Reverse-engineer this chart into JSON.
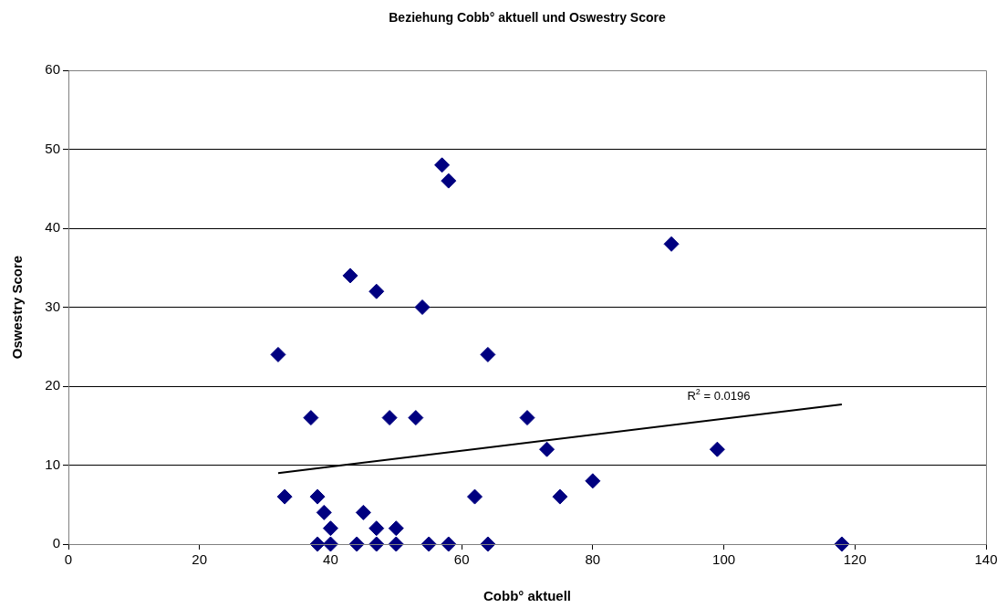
{
  "chart_data": {
    "type": "scatter",
    "title": "Beziehung Cobb° aktuell und Oswestry Score",
    "xlabel": "Cobb° aktuell",
    "ylabel": "Oswestry Score",
    "x": [
      32,
      33,
      37,
      38,
      38,
      39,
      40,
      40,
      43,
      44,
      45,
      47,
      47,
      47,
      49,
      50,
      50,
      53,
      54,
      55,
      57,
      58,
      58,
      62,
      64,
      64,
      70,
      73,
      75,
      80,
      92,
      99,
      118
    ],
    "series": [
      {
        "color": "#000080",
        "marker": "diamond",
        "values": [
          24,
          6,
          16,
          6,
          0,
          4,
          2,
          0,
          34,
          0,
          4,
          32,
          2,
          0,
          16,
          2,
          0,
          16,
          30,
          0,
          48,
          46,
          0,
          6,
          24,
          0,
          16,
          12,
          6,
          8,
          38,
          12,
          0
        ]
      },
      {
        "type": "line",
        "color": "#000000",
        "marker": "none",
        "x": [
          32,
          118
        ],
        "values": [
          9,
          17.7
        ]
      }
    ],
    "annotations": [
      "R$^{2}$ = 0.0196"
    ],
    "xlim": [
      0,
      140
    ],
    "xticks": [
      0,
      20,
      40,
      60,
      80,
      100,
      120,
      140
    ],
    "ylim": [
      0,
      60
    ],
    "yticks": [
      0,
      10,
      20,
      30,
      40,
      50,
      60
    ],
    "grid": "y",
    "legend": false
  }
}
